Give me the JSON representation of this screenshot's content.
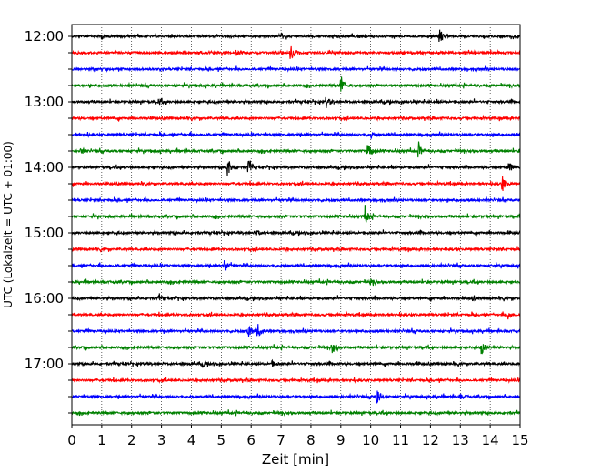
{
  "chart_data": {
    "type": "line",
    "title": "",
    "xlabel": "Zeit  [min]",
    "ylabel": "UTC (Lokalzeit = UTC + 01:00)",
    "xlim": [
      0,
      15
    ],
    "x_ticks": [
      "0",
      "1",
      "2",
      "3",
      "4",
      "5",
      "6",
      "7",
      "8",
      "9",
      "10",
      "11",
      "12",
      "13",
      "14",
      "15"
    ],
    "y_tick_labels": [
      "12:00",
      "13:00",
      "14:00",
      "15:00",
      "16:00",
      "17:00"
    ],
    "vertical_grid": "dotted",
    "trace_colors": [
      "#000000",
      "#ff0000",
      "#0000ff",
      "#008000"
    ],
    "traces": [
      {
        "start": "12:00",
        "color": "black",
        "events": [
          {
            "t": 1.0,
            "amp": 0.3
          },
          {
            "t": 12.3,
            "amp": 0.9
          }
        ]
      },
      {
        "start": "12:15",
        "color": "red",
        "events": [
          {
            "t": 5.5,
            "amp": 0.3
          },
          {
            "t": 7.3,
            "amp": 1.2
          }
        ]
      },
      {
        "start": "12:30",
        "color": "blue",
        "events": []
      },
      {
        "start": "12:45",
        "color": "green",
        "events": [
          {
            "t": 9.0,
            "amp": 1.1
          }
        ]
      },
      {
        "start": "13:00",
        "color": "black",
        "events": [
          {
            "t": 2.9,
            "amp": 0.35
          },
          {
            "t": 8.5,
            "amp": 0.7
          }
        ]
      },
      {
        "start": "13:15",
        "color": "red",
        "events": []
      },
      {
        "start": "13:30",
        "color": "blue",
        "events": [
          {
            "t": 10.0,
            "amp": 0.35
          }
        ]
      },
      {
        "start": "13:45",
        "color": "green",
        "events": [
          {
            "t": 0.3,
            "amp": 0.3
          },
          {
            "t": 9.9,
            "amp": 1.0
          },
          {
            "t": 11.6,
            "amp": 0.8
          }
        ]
      },
      {
        "start": "14:00",
        "color": "black",
        "events": [
          {
            "t": 5.2,
            "amp": 1.1
          },
          {
            "t": 5.9,
            "amp": 1.0
          },
          {
            "t": 14.6,
            "amp": 0.8
          }
        ]
      },
      {
        "start": "14:15",
        "color": "red",
        "events": [
          {
            "t": 14.4,
            "amp": 0.9
          }
        ]
      },
      {
        "start": "14:30",
        "color": "blue",
        "events": []
      },
      {
        "start": "14:45",
        "color": "green",
        "events": [
          {
            "t": 9.8,
            "amp": 1.0
          }
        ]
      },
      {
        "start": "15:00",
        "color": "black",
        "events": [
          {
            "t": 6.2,
            "amp": 0.3
          }
        ]
      },
      {
        "start": "15:15",
        "color": "red",
        "events": []
      },
      {
        "start": "15:30",
        "color": "blue",
        "events": [
          {
            "t": 5.1,
            "amp": 0.9
          }
        ]
      },
      {
        "start": "15:45",
        "color": "green",
        "events": [
          {
            "t": 10.0,
            "amp": 0.35
          }
        ]
      },
      {
        "start": "16:00",
        "color": "black",
        "events": [
          {
            "t": 2.9,
            "amp": 0.35
          },
          {
            "t": 13.4,
            "amp": 0.3
          }
        ]
      },
      {
        "start": "16:15",
        "color": "red",
        "events": [
          {
            "t": 14.6,
            "amp": 0.5
          }
        ]
      },
      {
        "start": "16:30",
        "color": "blue",
        "events": [
          {
            "t": 5.9,
            "amp": 0.8
          },
          {
            "t": 6.2,
            "amp": 0.9
          }
        ]
      },
      {
        "start": "16:45",
        "color": "green",
        "events": [
          {
            "t": 8.7,
            "amp": 0.9
          },
          {
            "t": 13.7,
            "amp": 0.9
          }
        ]
      },
      {
        "start": "17:00",
        "color": "black",
        "events": [
          {
            "t": 4.4,
            "amp": 0.3
          },
          {
            "t": 6.7,
            "amp": 0.3
          }
        ]
      },
      {
        "start": "17:15",
        "color": "red",
        "events": []
      },
      {
        "start": "17:30",
        "color": "blue",
        "events": [
          {
            "t": 10.2,
            "amp": 1.0
          },
          {
            "t": 13.0,
            "amp": 0.35
          }
        ]
      },
      {
        "start": "17:45",
        "color": "green",
        "events": []
      }
    ]
  }
}
